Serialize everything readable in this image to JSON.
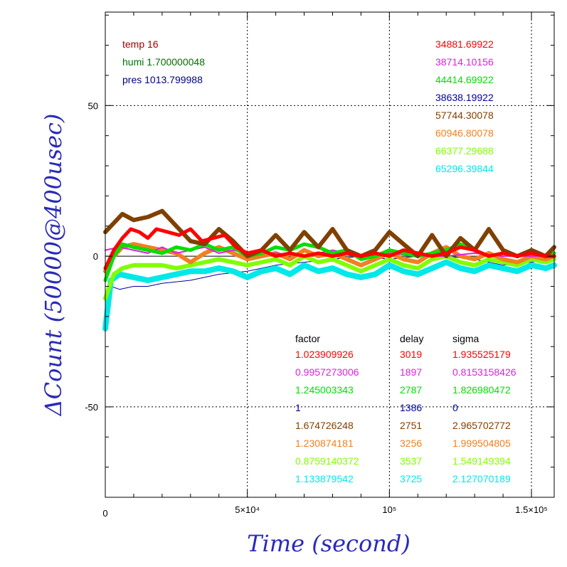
{
  "chart_data": {
    "type": "line",
    "xlabel": "Time (second)",
    "ylabel": "ΔCount (50000@400usec)",
    "xlim": [
      0,
      158000
    ],
    "ylim": [
      -80,
      81
    ],
    "grid": true,
    "x_ticks": [
      {
        "value": 50000,
        "label": "5×10⁴"
      },
      {
        "value": 100000,
        "label": "10⁵"
      },
      {
        "value": 150000,
        "label": "1.5×10⁵"
      }
    ],
    "x_origin_label": "0",
    "y_ticks": [
      {
        "value": 50,
        "label": "50"
      },
      {
        "value": 0,
        "label": "0"
      },
      {
        "value": -50,
        "label": "-50"
      }
    ],
    "conditions": [
      {
        "text": "temp 16",
        "color": "#a00000"
      },
      {
        "text": "humi 1.700000048",
        "color": "#007000"
      },
      {
        "text": "pres 1013.799988",
        "color": "#000080"
      }
    ],
    "table_headers": [
      "factor",
      "delay",
      "sigma"
    ],
    "series": [
      {
        "mean": "34881.69922",
        "factor": "1.023909926",
        "delay": "3019",
        "sigma": "1.935525179",
        "color": "#ff0000",
        "x": [
          0,
          3000,
          6000,
          9000,
          12000,
          15000,
          18000,
          22000,
          26000,
          30000,
          34000,
          38000,
          42000,
          46000,
          50000,
          55000,
          60000,
          65000,
          70000,
          75000,
          80000,
          85000,
          90000,
          95000,
          100000,
          105000,
          110000,
          115000,
          120000,
          125000,
          130000,
          135000,
          140000,
          145000,
          150000,
          155000,
          158000
        ],
        "y": [
          -4,
          2,
          6,
          9,
          8,
          6,
          9,
          8,
          7,
          9,
          5,
          6,
          7,
          3,
          1,
          2,
          0,
          1,
          0,
          1,
          0,
          1,
          0,
          1,
          0,
          2,
          1,
          0,
          1,
          3,
          2,
          0,
          1,
          0,
          1,
          0,
          0
        ]
      },
      {
        "mean": "38714.10156",
        "factor": "0.9957273006",
        "delay": "1897",
        "sigma": "0.8153158426",
        "color": "#e020e0",
        "x": [
          0,
          5000,
          10000,
          15000,
          20000,
          25000,
          30000,
          35000,
          40000,
          45000,
          50000,
          60000,
          70000,
          80000,
          90000,
          100000,
          110000,
          120000,
          130000,
          140000,
          150000,
          158000
        ],
        "y": [
          2,
          3,
          2,
          1,
          3,
          1,
          2,
          3,
          1,
          2,
          1,
          1,
          0,
          2,
          0,
          1,
          0,
          0,
          1,
          0,
          0,
          0
        ]
      },
      {
        "mean": "44414.69922",
        "factor": "1.245003343",
        "delay": "2787",
        "sigma": "1.826980472",
        "color": "#00e000",
        "x": [
          0,
          3000,
          6000,
          10000,
          15000,
          20000,
          25000,
          30000,
          35000,
          40000,
          45000,
          50000,
          55000,
          60000,
          65000,
          70000,
          75000,
          80000,
          85000,
          90000,
          95000,
          100000,
          105000,
          110000,
          115000,
          120000,
          125000,
          130000,
          135000,
          140000,
          145000,
          150000,
          155000,
          158000
        ],
        "y": [
          -8,
          0,
          4,
          3,
          2,
          1,
          3,
          2,
          4,
          2,
          3,
          0,
          1,
          3,
          2,
          4,
          3,
          1,
          2,
          -1,
          0,
          2,
          1,
          0,
          1,
          2,
          4,
          2,
          0,
          1,
          0,
          1,
          0,
          1
        ]
      },
      {
        "mean": "38638.19922",
        "factor": "1",
        "delay": "1386",
        "sigma": "0",
        "color": "#0000a0",
        "x": [
          0,
          2000,
          5000,
          10000,
          15000,
          20000,
          30000,
          40000,
          50000,
          60000,
          70000,
          80000,
          90000,
          100000,
          110000,
          120000,
          130000,
          140000,
          150000,
          158000
        ],
        "y": [
          -12,
          -10,
          -11,
          -10,
          -10,
          -9,
          -8,
          -6,
          -5,
          -3,
          -2,
          -1,
          0,
          -1,
          0,
          0,
          -1,
          -3,
          -2,
          -1
        ]
      },
      {
        "mean": "57744.30078",
        "factor": "1.674726248",
        "delay": "2751",
        "sigma": "2.965702772",
        "color": "#804000",
        "x": [
          0,
          3000,
          6000,
          10000,
          15000,
          20000,
          25000,
          30000,
          35000,
          40000,
          45000,
          50000,
          55000,
          60000,
          65000,
          70000,
          75000,
          80000,
          85000,
          90000,
          95000,
          100000,
          105000,
          110000,
          115000,
          120000,
          125000,
          130000,
          135000,
          140000,
          145000,
          150000,
          155000,
          158000
        ],
        "y": [
          8,
          11,
          14,
          12,
          13,
          15,
          10,
          5,
          4,
          9,
          5,
          0,
          2,
          7,
          2,
          8,
          3,
          9,
          2,
          0,
          2,
          8,
          4,
          0,
          7,
          0,
          6,
          2,
          9,
          2,
          0,
          2,
          0,
          3
        ]
      },
      {
        "mean": "60946.80078",
        "factor": "1.230874181",
        "delay": "3256",
        "sigma": "1.999504805",
        "color": "#f08020",
        "x": [
          0,
          3000,
          6000,
          10000,
          15000,
          20000,
          25000,
          30000,
          35000,
          40000,
          45000,
          50000,
          55000,
          60000,
          65000,
          70000,
          75000,
          80000,
          85000,
          90000,
          95000,
          100000,
          105000,
          110000,
          115000,
          120000,
          125000,
          130000,
          135000,
          140000,
          145000,
          150000,
          155000,
          158000
        ],
        "y": [
          -5,
          0,
          3,
          4,
          3,
          2,
          1,
          -2,
          1,
          3,
          1,
          -1,
          0,
          1,
          -1,
          2,
          0,
          1,
          -1,
          -3,
          -1,
          1,
          -1,
          -2,
          1,
          3,
          0,
          -1,
          1,
          -1,
          -2,
          0,
          -1,
          0
        ]
      },
      {
        "mean": "66377.29688",
        "factor": "0.8759140372",
        "delay": "3537",
        "sigma": "1.549149394",
        "color": "#80ff00",
        "x": [
          0,
          3000,
          6000,
          10000,
          15000,
          20000,
          25000,
          30000,
          35000,
          40000,
          45000,
          50000,
          55000,
          60000,
          65000,
          70000,
          75000,
          80000,
          85000,
          90000,
          95000,
          100000,
          105000,
          110000,
          115000,
          120000,
          125000,
          130000,
          135000,
          140000,
          145000,
          150000,
          155000,
          158000
        ],
        "y": [
          -14,
          -6,
          -4,
          -3,
          -3,
          -3,
          -4,
          -3,
          -2,
          -1,
          -2,
          -3,
          -2,
          -1,
          -3,
          0,
          -2,
          -1,
          -3,
          -5,
          -3,
          -1,
          -3,
          -4,
          -1,
          0,
          -2,
          -3,
          -1,
          -2,
          -3,
          -1,
          -2,
          -1
        ]
      },
      {
        "mean": "65296.39844",
        "factor": "1.133879542",
        "delay": "3725",
        "sigma": "2.127070189",
        "color": "#00e8e8",
        "x": [
          0,
          2000,
          5000,
          10000,
          15000,
          20000,
          25000,
          30000,
          35000,
          40000,
          45000,
          50000,
          55000,
          60000,
          65000,
          70000,
          75000,
          80000,
          85000,
          90000,
          95000,
          100000,
          105000,
          110000,
          115000,
          120000,
          125000,
          130000,
          135000,
          140000,
          145000,
          150000,
          155000,
          158000
        ],
        "y": [
          -24,
          -8,
          -6,
          -7,
          -8,
          -7,
          -6,
          -5,
          -5,
          -4,
          -5,
          -7,
          -5,
          -4,
          -6,
          -3,
          -5,
          -4,
          -6,
          -7,
          -6,
          -3,
          -5,
          -6,
          -4,
          -2,
          -4,
          -5,
          -3,
          -4,
          -5,
          -3,
          -4,
          -3
        ]
      }
    ]
  }
}
